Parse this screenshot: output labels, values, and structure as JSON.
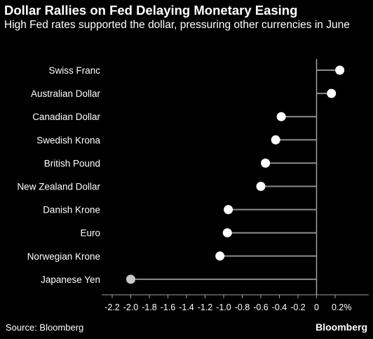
{
  "header": {
    "title": "Dollar Rallies on Fed Delaying Monetary Easing",
    "subtitle": "High Fed rates supported the dollar, pressuring other currencies in June"
  },
  "footer": {
    "source": "Source: Bloomberg",
    "brand": "Bloomberg"
  },
  "colors": {
    "background": "#000000",
    "marker": "#ffffff",
    "marker_highlight": "#c8c8c8",
    "stem": "#8c8c8c",
    "axis": "#a0a0a0"
  },
  "chart_data": {
    "type": "lollipop",
    "categories": [
      "Swiss Franc",
      "Australian Dollar",
      "Canadian Dollar",
      "Swedish Krona",
      "British Pound",
      "New Zealand Dollar",
      "Danish Krone",
      "Euro",
      "Norwegian Krone",
      "Japanese Yen"
    ],
    "values": [
      0.25,
      0.16,
      -0.38,
      -0.44,
      -0.55,
      -0.6,
      -0.95,
      -0.96,
      -1.04,
      -2.0
    ],
    "highlight": [
      "Japanese Yen"
    ],
    "xlim": [
      -2.2,
      0.2
    ],
    "xticks": [
      -2.2,
      -2.0,
      -1.8,
      -1.6,
      -1.4,
      -1.2,
      -1.0,
      -0.8,
      -0.6,
      -0.4,
      -0.2,
      0,
      0.2
    ],
    "xtick_labels": [
      "-2.2",
      "-2.0",
      "-1.8",
      "-1.6",
      "-1.4",
      "-1.2",
      "-1.0",
      "-0.8",
      "-0.6",
      "-0.4",
      "-0.2",
      "0",
      "0.2%"
    ],
    "grid": false,
    "legend": "none"
  }
}
